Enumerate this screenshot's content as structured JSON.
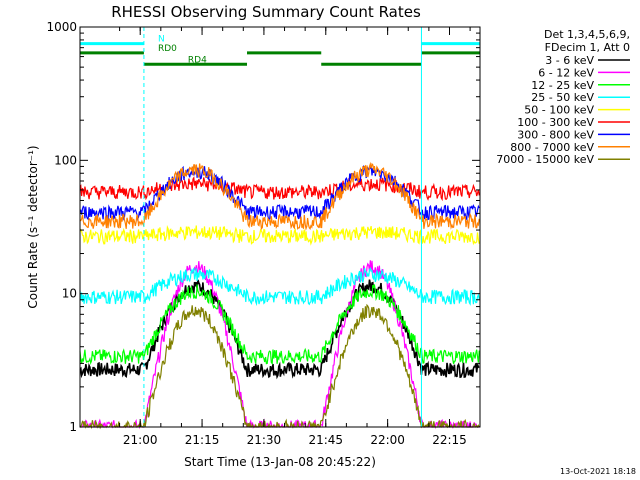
{
  "chart_data": {
    "type": "line",
    "title": "RHESSI Observing Summary Count Rates",
    "xlabel": "Start Time (13-Jan-08 20:45:22)",
    "ylabel": "Count Rate (s⁻¹ detector⁻¹)",
    "y_scale": "log",
    "ylim": [
      1,
      1000
    ],
    "y_ticks": [
      1,
      10,
      100,
      1000
    ],
    "y_tick_labels": [
      "1",
      "10",
      "100",
      "1000"
    ],
    "x_unit": "minutes since 20:45:22",
    "xlim": [
      0,
      97
    ],
    "x_ticks": [
      14.6,
      29.6,
      44.6,
      59.6,
      74.6,
      89.6
    ],
    "x_tick_labels": [
      "21:00",
      "21:15",
      "21:30",
      "21:45",
      "22:00",
      "22:15"
    ],
    "grid": false,
    "legend_position": "right",
    "legend_header": [
      "Det 1,3,4,5,6,9,",
      "FDecim 1, Att 0"
    ],
    "series": [
      {
        "name": "3 - 6 keV",
        "color": "#000000",
        "data_gap_pattern": "orbital",
        "peak": 11.5,
        "night": 2.7
      },
      {
        "name": "6 - 12 keV",
        "color": "#ff00ff",
        "peak": 16,
        "night": 1.0
      },
      {
        "name": "12 - 25 keV",
        "color": "#00ff00",
        "peak": 10.5,
        "night": 3.4
      },
      {
        "name": "25 - 50 keV",
        "color": "#00ffff",
        "peak": 14,
        "night": 9.5
      },
      {
        "name": "50 - 100 keV",
        "color": "#ffff00",
        "peak": 29,
        "night": 27
      },
      {
        "name": "100 - 300 keV",
        "color": "#ff0000",
        "peak": 67,
        "night": 58
      },
      {
        "name": "300 - 800 keV",
        "color": "#0000ff",
        "peak": 83,
        "night": 41
      },
      {
        "name": "800 - 7000 keV",
        "color": "#ff8000",
        "peak": 85,
        "night": 35
      },
      {
        "name": "7000 - 15000 keV",
        "color": "#808000",
        "peak": 7.5,
        "night": 1.0
      }
    ],
    "day_intervals_minutes": [
      [
        15.5,
        40.5
      ],
      [
        58.5,
        83
      ]
    ],
    "annotations": [
      {
        "text": "N",
        "color": "#00ffff",
        "type": "flag-bar",
        "intervals": [
          [
            0,
            15.5
          ],
          [
            82.8,
            97
          ]
        ],
        "level": 750
      },
      {
        "text": "RD0",
        "color": "#008000",
        "type": "flag-bar",
        "intervals": [
          [
            0,
            15.5
          ],
          [
            40.5,
            58.5
          ],
          [
            82.8,
            97
          ]
        ],
        "level": 640
      },
      {
        "text": "RD4",
        "color": "#008000",
        "type": "flag-bar",
        "intervals": [
          [
            15.5,
            40.5
          ],
          [
            58.5,
            82.8
          ]
        ],
        "level": 525
      }
    ],
    "vertical_markers": [
      {
        "x": 15.5,
        "color": "#00ffff",
        "style": "dashed"
      },
      {
        "x": 82.8,
        "color": "#00ffff",
        "style": "solid"
      },
      {
        "x": 97,
        "color": "#00ffff",
        "style": "dashed"
      }
    ]
  },
  "footer": {
    "timestamp": "13-Oct-2021 18:18"
  }
}
